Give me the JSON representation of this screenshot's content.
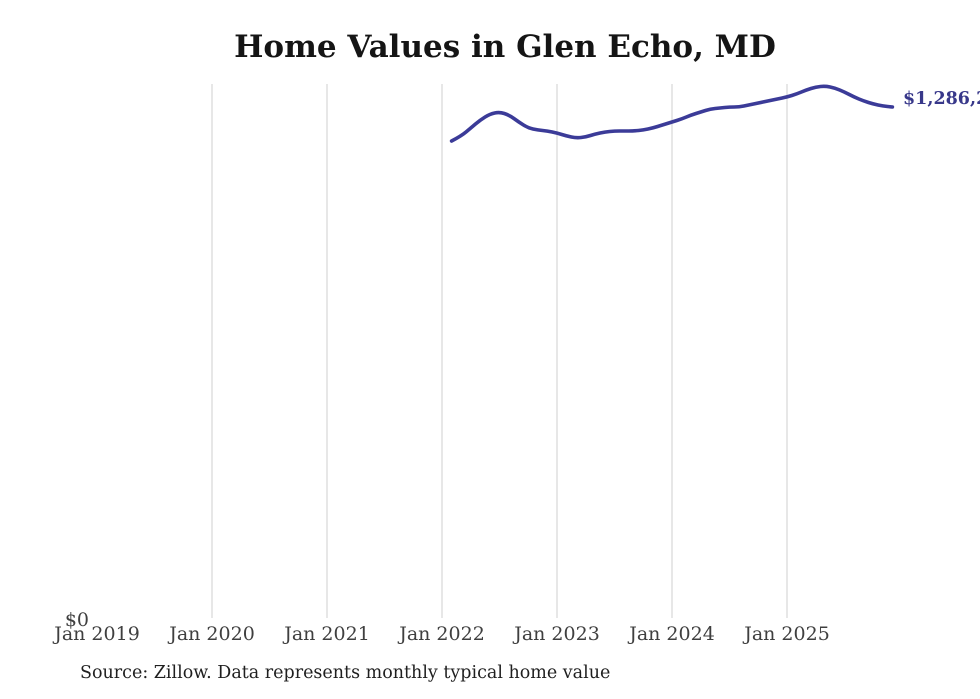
{
  "chart": {
    "title": "Home Values in Glen Echo, MD",
    "source_note": "Source: Zillow. Data represents monthly typical home value",
    "y_zero_label": "$0",
    "latest_value_label": "$1,286,2",
    "colors": {
      "line": "#3b3b98",
      "value_label": "#38388a",
      "grid": "#cfcfcf",
      "tick_label": "#3f3f3f",
      "title": "#151515",
      "source": "#1f1f1f"
    },
    "x_ticks": [
      {
        "label": "Jan 2019",
        "year": 2019,
        "gridline": false
      },
      {
        "label": "Jan 2020",
        "year": 2020,
        "gridline": true
      },
      {
        "label": "Jan 2021",
        "year": 2021,
        "gridline": true
      },
      {
        "label": "Jan 2022",
        "year": 2022,
        "gridline": true
      },
      {
        "label": "Jan 2023",
        "year": 2023,
        "gridline": true
      },
      {
        "label": "Jan 2024",
        "year": 2024,
        "gridline": true
      },
      {
        "label": "Jan 2025",
        "year": 2025,
        "gridline": true
      }
    ],
    "y_ticks": [
      {
        "label": "$0",
        "value": 0
      }
    ]
  },
  "chart_data": {
    "type": "line",
    "title": "Home Values in Glen Echo, MD",
    "xlabel": "",
    "ylabel": "",
    "x_range": [
      "2019-01",
      "2026-01"
    ],
    "ylim": [
      0,
      1342000
    ],
    "grid": "vertical-gridlines-only",
    "legend": "none",
    "end_label": "$1,286,2",
    "end_value": 1286200,
    "series": [
      {
        "name": "Monthly typical home value",
        "points": [
          {
            "date": "2022-02",
            "value": 1200500
          },
          {
            "date": "2022-03",
            "value": 1213100
          },
          {
            "date": "2022-04",
            "value": 1233300
          },
          {
            "date": "2022-05",
            "value": 1253400
          },
          {
            "date": "2022-06",
            "value": 1268600
          },
          {
            "date": "2022-07",
            "value": 1273600
          },
          {
            "date": "2022-08",
            "value": 1266000
          },
          {
            "date": "2022-09",
            "value": 1248400
          },
          {
            "date": "2022-10",
            "value": 1233300
          },
          {
            "date": "2022-11",
            "value": 1228200
          },
          {
            "date": "2022-12",
            "value": 1225700
          },
          {
            "date": "2023-01",
            "value": 1220600
          },
          {
            "date": "2023-02",
            "value": 1213100
          },
          {
            "date": "2023-03",
            "value": 1208000
          },
          {
            "date": "2023-04",
            "value": 1210600
          },
          {
            "date": "2023-05",
            "value": 1218100
          },
          {
            "date": "2023-06",
            "value": 1223200
          },
          {
            "date": "2023-07",
            "value": 1225700
          },
          {
            "date": "2023-08",
            "value": 1225700
          },
          {
            "date": "2023-09",
            "value": 1225700
          },
          {
            "date": "2023-10",
            "value": 1228200
          },
          {
            "date": "2023-11",
            "value": 1233300
          },
          {
            "date": "2023-12",
            "value": 1240800
          },
          {
            "date": "2024-01",
            "value": 1248400
          },
          {
            "date": "2024-02",
            "value": 1256000
          },
          {
            "date": "2024-03",
            "value": 1266000
          },
          {
            "date": "2024-04",
            "value": 1273600
          },
          {
            "date": "2024-05",
            "value": 1281200
          },
          {
            "date": "2024-06",
            "value": 1283700
          },
          {
            "date": "2024-07",
            "value": 1286200
          },
          {
            "date": "2024-08",
            "value": 1286200
          },
          {
            "date": "2024-09",
            "value": 1291300
          },
          {
            "date": "2024-10",
            "value": 1296300
          },
          {
            "date": "2024-11",
            "value": 1301400
          },
          {
            "date": "2024-12",
            "value": 1306400
          },
          {
            "date": "2025-01",
            "value": 1311400
          },
          {
            "date": "2025-02",
            "value": 1319000
          },
          {
            "date": "2025-03",
            "value": 1329100
          },
          {
            "date": "2025-04",
            "value": 1336700
          },
          {
            "date": "2025-05",
            "value": 1339200
          },
          {
            "date": "2025-06",
            "value": 1334100
          },
          {
            "date": "2025-07",
            "value": 1324100
          },
          {
            "date": "2025-08",
            "value": 1311400
          },
          {
            "date": "2025-09",
            "value": 1301400
          },
          {
            "date": "2025-10",
            "value": 1293800
          },
          {
            "date": "2025-11",
            "value": 1288700
          },
          {
            "date": "2025-12",
            "value": 1286200
          }
        ]
      }
    ]
  }
}
